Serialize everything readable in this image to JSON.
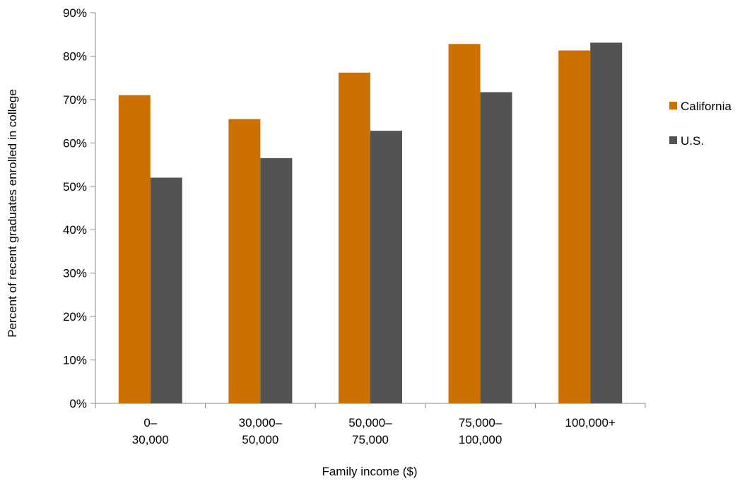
{
  "chart_data": {
    "type": "bar",
    "title": "",
    "xlabel": "Family income ($)",
    "ylabel": "Percent of recent graduates enrolled in college",
    "ylim": [
      0,
      90
    ],
    "y_ticks": [
      "0%",
      "10%",
      "20%",
      "30%",
      "40%",
      "50%",
      "60%",
      "70%",
      "80%",
      "90%"
    ],
    "y_tick_values": [
      0,
      10,
      20,
      30,
      40,
      50,
      60,
      70,
      80,
      90
    ],
    "categories": [
      [
        "0–",
        "30,000"
      ],
      [
        "30,000–",
        "50,000"
      ],
      [
        "50,000–",
        "75,000"
      ],
      [
        "75,000–",
        "100,000"
      ],
      [
        "100,000+"
      ]
    ],
    "series": [
      {
        "name": "California",
        "color": "#CC7000",
        "values": [
          71,
          65.5,
          76.2,
          82.8,
          81.3
        ]
      },
      {
        "name": "U.S.",
        "color": "#535353",
        "values": [
          52,
          56.5,
          62.8,
          71.7,
          83.1
        ]
      }
    ],
    "grid": false,
    "legend_position": "right"
  }
}
